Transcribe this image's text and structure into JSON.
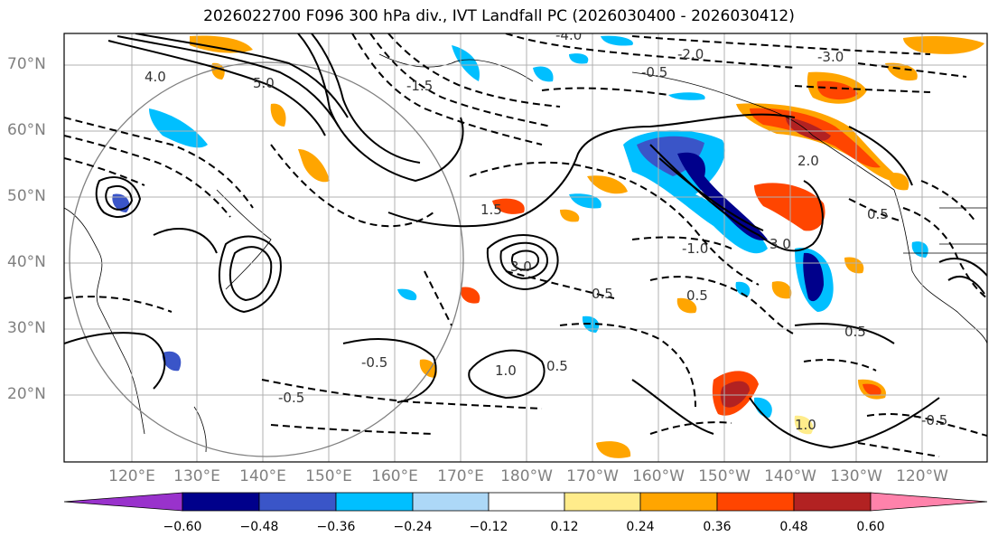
{
  "title": "2026022700 F096 300 hPa div., IVT Landfall PC (2026030400 - 2026030412)",
  "lat_labels": [
    "70°N",
    "60°N",
    "50°N",
    "40°N",
    "30°N",
    "20°N"
  ],
  "lon_labels": [
    "120°E",
    "130°E",
    "140°E",
    "150°E",
    "160°E",
    "170°E",
    "180°W",
    "170°W",
    "160°W",
    "150°W",
    "140°W",
    "130°W",
    "120°W"
  ],
  "contour_labels": [
    "-4.0",
    "-2.0",
    "-3.0",
    "-0.5",
    "-1.5",
    "-1.0",
    "0.5",
    "1.0",
    "1.5",
    "2.0",
    "3.0",
    "4.0",
    "5.0"
  ],
  "colorbar": {
    "ticks": [
      "−0.60",
      "−0.48",
      "−0.36",
      "−0.24",
      "−0.12",
      "0.12",
      "0.24",
      "0.36",
      "0.48",
      "0.60"
    ],
    "colors": [
      "#9932cc",
      "#00008b",
      "#3a55c8",
      "#00bfff",
      "#add8f7",
      "#ffffff",
      "#ffec8b",
      "#ffa500",
      "#ff4500",
      "#b22222",
      "#ff82ab"
    ]
  }
}
